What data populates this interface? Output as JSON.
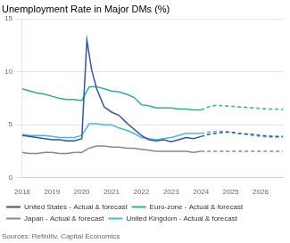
{
  "chart_data": {
    "type": "line",
    "title": "Unemployment Rate in Major DMs (%)",
    "annotations": [
      "Sources: Refinitiv, Capital Economics"
    ],
    "xlim": [
      2018,
      2026.75
    ],
    "xticks": [
      2018,
      2019,
      2020,
      2021,
      2022,
      2023,
      2024,
      2025,
      2026
    ],
    "ylim": [
      0,
      15
    ],
    "yticks": [
      0,
      5,
      10,
      15
    ],
    "grid": "y",
    "legend": "bottom",
    "series": [
      {
        "name": "United States - Actual & forecast",
        "color": "#3455a4",
        "line_style": "solid",
        "x": [
          2018.0,
          2018.25,
          2018.5,
          2018.75,
          2019.0,
          2019.25,
          2019.5,
          2019.75,
          2020.0,
          2020.17,
          2020.33,
          2020.5,
          2020.75,
          2021.0,
          2021.25,
          2021.5,
          2021.75,
          2022.0,
          2022.25,
          2022.5,
          2022.75,
          2023.0,
          2023.25,
          2023.5,
          2023.75,
          2024.0
        ],
        "values": [
          4.0,
          3.9,
          3.8,
          3.7,
          3.6,
          3.6,
          3.5,
          3.5,
          3.7,
          13.0,
          10.2,
          8.4,
          6.7,
          6.2,
          5.9,
          5.2,
          4.6,
          4.0,
          3.6,
          3.5,
          3.6,
          3.4,
          3.6,
          3.8,
          3.7,
          3.9
        ]
      },
      {
        "name": "United States - Actual & forecast",
        "color": "#3455a4",
        "line_style": "dashed",
        "x": [
          2024.0,
          2024.25,
          2024.5,
          2024.75,
          2025.0,
          2025.25,
          2025.5,
          2025.75,
          2026.0,
          2026.25,
          2026.5,
          2026.75
        ],
        "values": [
          3.9,
          4.1,
          4.2,
          4.3,
          4.3,
          4.2,
          4.15,
          4.1,
          4.0,
          3.95,
          3.9,
          3.9
        ]
      },
      {
        "name": "Euro-zone - Actual & forecast",
        "color": "#2ab09a",
        "line_style": "solid",
        "x": [
          2018.0,
          2018.25,
          2018.5,
          2018.75,
          2019.0,
          2019.25,
          2019.5,
          2019.75,
          2020.0,
          2020.25,
          2020.5,
          2020.75,
          2021.0,
          2021.25,
          2021.5,
          2021.75,
          2022.0,
          2022.25,
          2022.5,
          2022.75,
          2023.0,
          2023.25,
          2023.5,
          2023.75,
          2024.0
        ],
        "values": [
          8.4,
          8.2,
          8.0,
          7.9,
          7.7,
          7.5,
          7.4,
          7.4,
          7.3,
          8.6,
          8.6,
          8.4,
          8.2,
          8.1,
          7.9,
          7.6,
          6.9,
          6.8,
          6.6,
          6.6,
          6.6,
          6.5,
          6.5,
          6.4,
          6.4
        ]
      },
      {
        "name": "Euro-zone - Actual & forecast",
        "color": "#2ab09a",
        "line_style": "dashed",
        "x": [
          2024.0,
          2024.25,
          2024.5,
          2024.75,
          2025.0,
          2025.25,
          2025.5,
          2025.75,
          2026.0,
          2026.25,
          2026.5,
          2026.75
        ],
        "values": [
          6.4,
          6.7,
          6.85,
          6.8,
          6.75,
          6.7,
          6.65,
          6.6,
          6.55,
          6.5,
          6.5,
          6.45
        ]
      },
      {
        "name": "Japan - Actual & forecast",
        "color": "#888888",
        "line_style": "solid",
        "x": [
          2018.0,
          2018.25,
          2018.5,
          2018.75,
          2019.0,
          2019.25,
          2019.5,
          2019.75,
          2020.0,
          2020.25,
          2020.5,
          2020.75,
          2021.0,
          2021.25,
          2021.5,
          2021.75,
          2022.0,
          2022.25,
          2022.5,
          2022.75,
          2023.0,
          2023.25,
          2023.5,
          2023.75,
          2024.0
        ],
        "values": [
          2.4,
          2.3,
          2.3,
          2.4,
          2.4,
          2.3,
          2.3,
          2.4,
          2.4,
          2.8,
          3.0,
          3.0,
          2.9,
          2.9,
          2.8,
          2.8,
          2.7,
          2.6,
          2.5,
          2.5,
          2.5,
          2.5,
          2.5,
          2.4,
          2.5
        ]
      },
      {
        "name": "Japan - Actual & forecast",
        "color": "#888888",
        "line_style": "dashed",
        "x": [
          2024.0,
          2024.25,
          2024.5,
          2024.75,
          2025.0,
          2025.25,
          2025.5,
          2025.75,
          2026.0,
          2026.25,
          2026.5,
          2026.75
        ],
        "values": [
          2.5,
          2.5,
          2.5,
          2.5,
          2.5,
          2.5,
          2.5,
          2.5,
          2.5,
          2.5,
          2.5,
          2.5
        ]
      },
      {
        "name": "United Kingdom - Actual & forecast",
        "color": "#4ab8d8",
        "line_style": "solid",
        "x": [
          2018.0,
          2018.25,
          2018.5,
          2018.75,
          2019.0,
          2019.25,
          2019.5,
          2019.75,
          2020.0,
          2020.25,
          2020.5,
          2020.75,
          2021.0,
          2021.25,
          2021.5,
          2021.75,
          2022.0,
          2022.25,
          2022.5,
          2022.75,
          2023.0,
          2023.25,
          2023.5,
          2023.75,
          2024.0
        ],
        "values": [
          4.1,
          4.0,
          4.0,
          4.0,
          3.9,
          3.8,
          3.8,
          3.8,
          4.0,
          5.1,
          5.1,
          5.0,
          5.0,
          4.7,
          4.5,
          4.2,
          3.8,
          3.7,
          3.6,
          3.7,
          3.8,
          4.0,
          4.2,
          4.2,
          4.2
        ]
      },
      {
        "name": "United Kingdom - Actual & forecast",
        "color": "#4ab8d8",
        "line_style": "dashed",
        "x": [
          2024.0,
          2024.25,
          2024.5,
          2024.75,
          2025.0,
          2025.25,
          2025.5,
          2025.75,
          2026.0,
          2026.25,
          2026.5,
          2026.75
        ],
        "values": [
          4.2,
          4.3,
          4.4,
          4.4,
          4.3,
          4.2,
          4.1,
          4.0,
          3.9,
          3.85,
          3.85,
          3.85
        ]
      }
    ]
  }
}
